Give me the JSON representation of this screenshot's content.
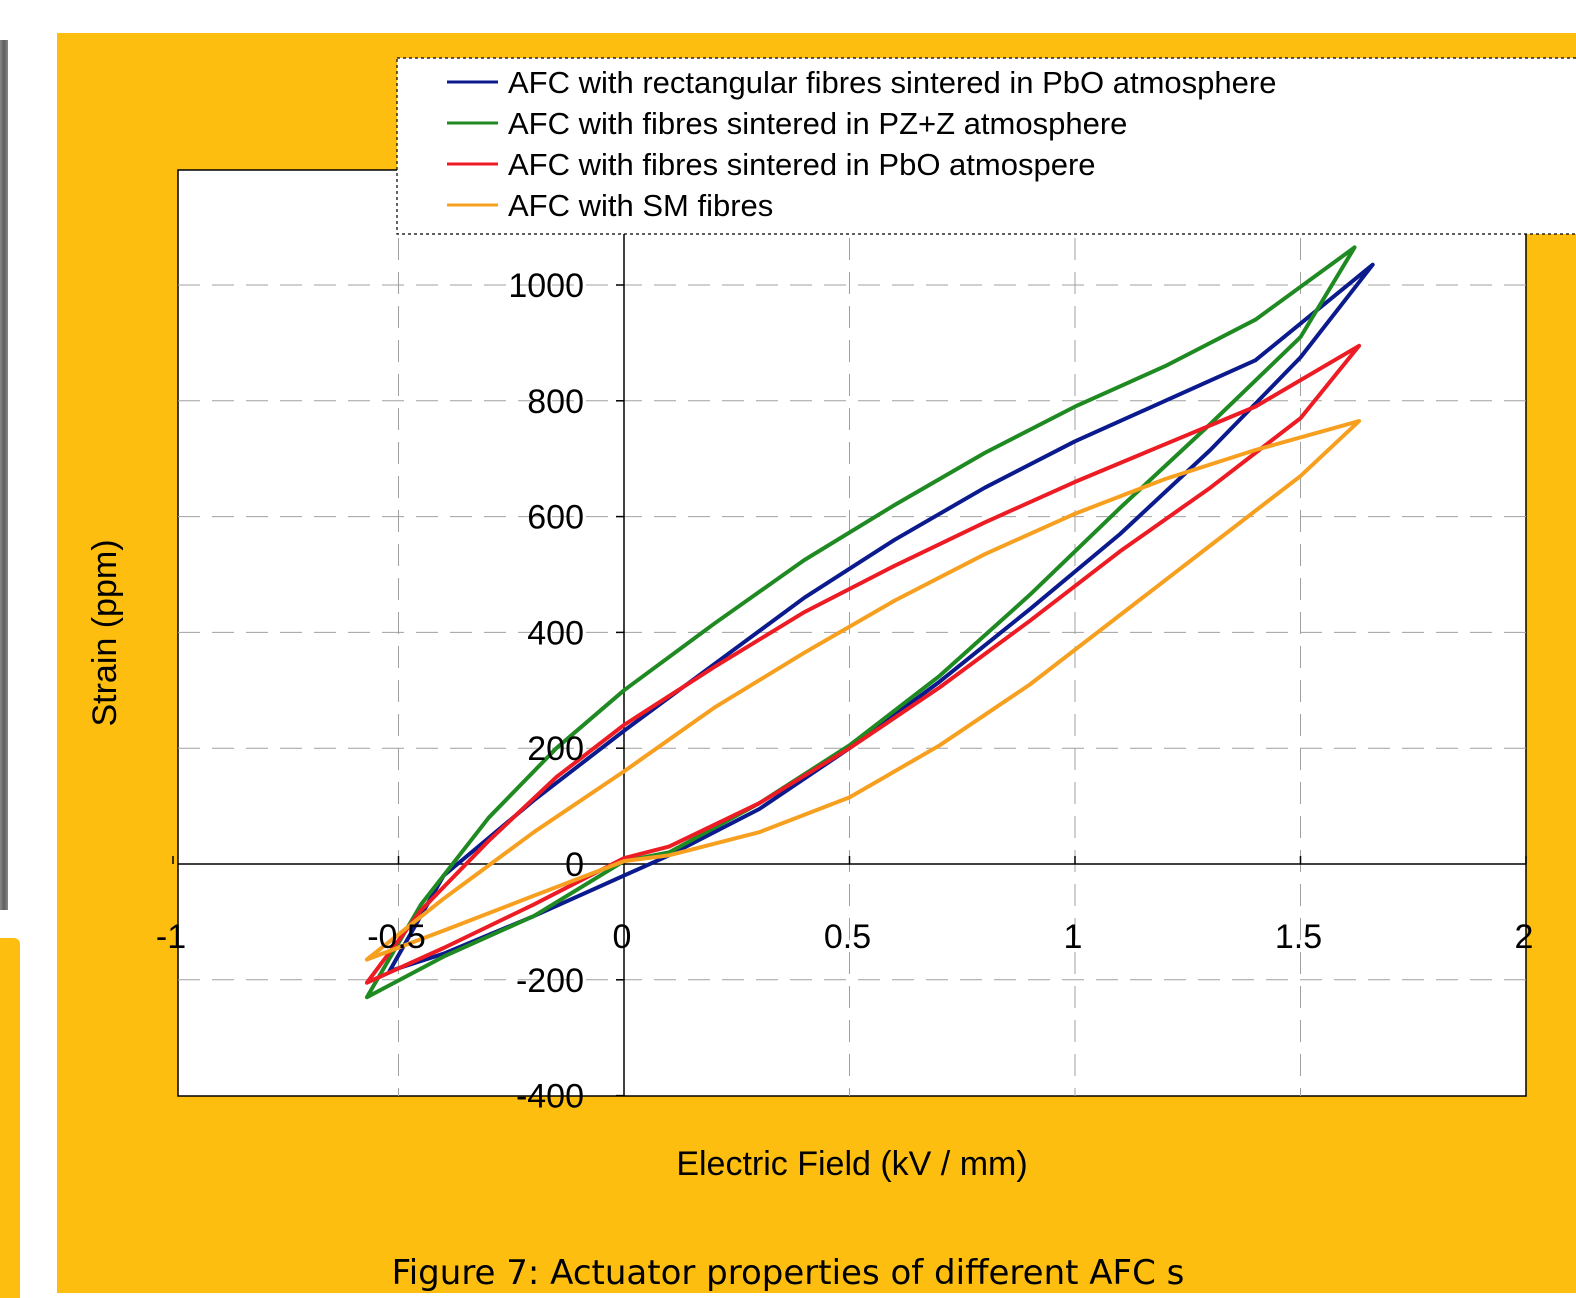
{
  "caption": "Figure  7: Actuator properties of different AFC s",
  "chart_data": {
    "type": "line",
    "xlabel": "Electric Field (kV / mm)",
    "ylabel": "Strain (ppm)",
    "xlim": [
      -1,
      2
    ],
    "ylim": [
      -400,
      1200
    ],
    "x_ticks": [
      -1,
      -0.5,
      0,
      0.5,
      1,
      1.5,
      2
    ],
    "x_tick_labels": [
      "-1",
      "-0.5",
      "0",
      "0.5",
      "1",
      "1.5",
      "2"
    ],
    "y_ticks": [
      -400,
      -200,
      0,
      200,
      400,
      600,
      800,
      1000
    ],
    "y_tick_labels": [
      "-400",
      "-200",
      "0",
      "200",
      "400",
      "600",
      "800",
      "1000"
    ],
    "grid": true,
    "legend_position": "top-right",
    "series": [
      {
        "name": "AFC with rectangular fibres sintered in PbO atmosphere",
        "color": "#0b1a8c",
        "x": [
          -0.52,
          -0.4,
          -0.2,
          0,
          0.2,
          0.4,
          0.6,
          0.8,
          1.0,
          1.2,
          1.4,
          1.66,
          1.5,
          1.3,
          1.1,
          0.9,
          0.7,
          0.5,
          0.3,
          0.1,
          0,
          -0.2,
          -0.4,
          -0.52
        ],
        "y": [
          -185,
          -20,
          110,
          230,
          345,
          460,
          560,
          650,
          730,
          800,
          870,
          1035,
          875,
          715,
          570,
          440,
          315,
          200,
          95,
          15,
          -20,
          -90,
          -155,
          -185
        ]
      },
      {
        "name": "AFC with fibres sintered in PZ+Z atmosphere",
        "color": "#1f8a22",
        "x": [
          -0.57,
          -0.45,
          -0.3,
          -0.15,
          0,
          0.2,
          0.4,
          0.6,
          0.8,
          1.0,
          1.2,
          1.4,
          1.62,
          1.5,
          1.3,
          1.1,
          0.9,
          0.7,
          0.5,
          0.3,
          0.1,
          0,
          -0.2,
          -0.4,
          -0.57
        ],
        "y": [
          -230,
          -70,
          80,
          200,
          300,
          415,
          525,
          620,
          710,
          790,
          860,
          940,
          1065,
          910,
          760,
          615,
          465,
          325,
          205,
          105,
          20,
          5,
          -90,
          -160,
          -230
        ]
      },
      {
        "name": "AFC with fibres sintered in PbO atmospere",
        "color": "#ed1c24",
        "x": [
          -0.57,
          -0.45,
          -0.3,
          -0.15,
          0,
          0.2,
          0.4,
          0.6,
          0.8,
          1.0,
          1.2,
          1.4,
          1.63,
          1.5,
          1.3,
          1.1,
          0.9,
          0.7,
          0.5,
          0.3,
          0.1,
          0,
          -0.2,
          -0.4,
          -0.57
        ],
        "y": [
          -205,
          -80,
          40,
          150,
          240,
          340,
          435,
          515,
          590,
          660,
          725,
          790,
          895,
          770,
          650,
          540,
          420,
          305,
          200,
          105,
          30,
          10,
          -70,
          -145,
          -205
        ]
      },
      {
        "name": "AFC with SM fibres",
        "color": "#f7a020",
        "x": [
          -0.57,
          -0.4,
          -0.2,
          0,
          0.2,
          0.4,
          0.6,
          0.8,
          1.0,
          1.2,
          1.4,
          1.63,
          1.5,
          1.3,
          1.1,
          0.9,
          0.7,
          0.5,
          0.3,
          0.1,
          0,
          -0.2,
          -0.4,
          -0.57
        ],
        "y": [
          -165,
          -60,
          55,
          160,
          270,
          365,
          455,
          535,
          605,
          665,
          715,
          765,
          670,
          550,
          430,
          310,
          205,
          115,
          55,
          15,
          5,
          -55,
          -115,
          -165
        ]
      }
    ]
  }
}
